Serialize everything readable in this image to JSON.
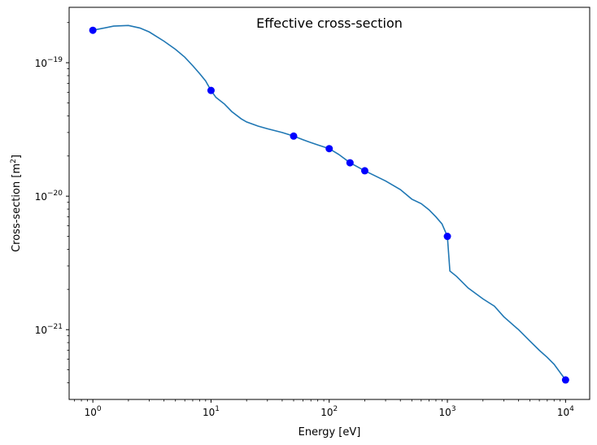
{
  "chart_data": {
    "type": "line",
    "title": "Effective cross-section",
    "xlabel": "Energy [eV]",
    "ylabel_main": "Cross-section [m",
    "ylabel_sup": "2",
    "ylabel_end": "]",
    "xscale": "log",
    "yscale": "log",
    "xlim": [
      0.63,
      16000
    ],
    "ylim": [
      3e-22,
      2.6e-19
    ],
    "grid": false,
    "x_ticks": [
      1,
      10,
      100,
      1000,
      10000
    ],
    "x_tick_labels": [
      {
        "base": "10",
        "exp": "0"
      },
      {
        "base": "10",
        "exp": "1"
      },
      {
        "base": "10",
        "exp": "2"
      },
      {
        "base": "10",
        "exp": "3"
      },
      {
        "base": "10",
        "exp": "4"
      }
    ],
    "y_ticks": [
      1e-21,
      1e-20,
      1e-19
    ],
    "y_tick_labels": [
      {
        "base": "10",
        "exp": "−21"
      },
      {
        "base": "10",
        "exp": "−20"
      },
      {
        "base": "10",
        "exp": "−19"
      }
    ],
    "series": [
      {
        "kind": "line",
        "color": "#1f77b4",
        "x": [
          1,
          1.5,
          2,
          2.5,
          3,
          4,
          5,
          6,
          7,
          8,
          9,
          10,
          11,
          13,
          15,
          18,
          20,
          25,
          30,
          40,
          50,
          60,
          70,
          80,
          100,
          120,
          150,
          200,
          300,
          400,
          500,
          600,
          700,
          800,
          900,
          1000,
          1050,
          1200,
          1500,
          2000,
          2500,
          3000,
          4000,
          5000,
          6000,
          7000,
          8000,
          10000
        ],
        "y": [
          1.75e-19,
          1.88e-19,
          1.9e-19,
          1.82e-19,
          1.7e-19,
          1.45e-19,
          1.26e-19,
          1.1e-19,
          9.5e-20,
          8.3e-20,
          7.3e-20,
          6.2e-20,
          5.5e-20,
          4.9e-20,
          4.3e-20,
          3.8e-20,
          3.6e-20,
          3.35e-20,
          3.2e-20,
          3e-20,
          2.82e-20,
          2.65e-20,
          2.52e-20,
          2.42e-20,
          2.27e-20,
          2.06e-20,
          1.78e-20,
          1.55e-20,
          1.3e-20,
          1.12e-20,
          9.5e-21,
          8.8e-21,
          7.9e-21,
          7e-21,
          6.2e-21,
          5e-21,
          2.75e-21,
          2.5e-21,
          2.05e-21,
          1.7e-21,
          1.5e-21,
          1.25e-21,
          1e-21,
          8.2e-22,
          7e-22,
          6.2e-22,
          5.5e-22,
          4.2e-22
        ]
      },
      {
        "kind": "scatter",
        "color": "#0000ff",
        "x": [
          1,
          10,
          50,
          100,
          150,
          200,
          1000,
          10000
        ],
        "y": [
          1.75e-19,
          6.2e-20,
          2.82e-20,
          2.27e-20,
          1.78e-20,
          1.55e-20,
          5e-21,
          4.2e-22
        ]
      }
    ]
  }
}
